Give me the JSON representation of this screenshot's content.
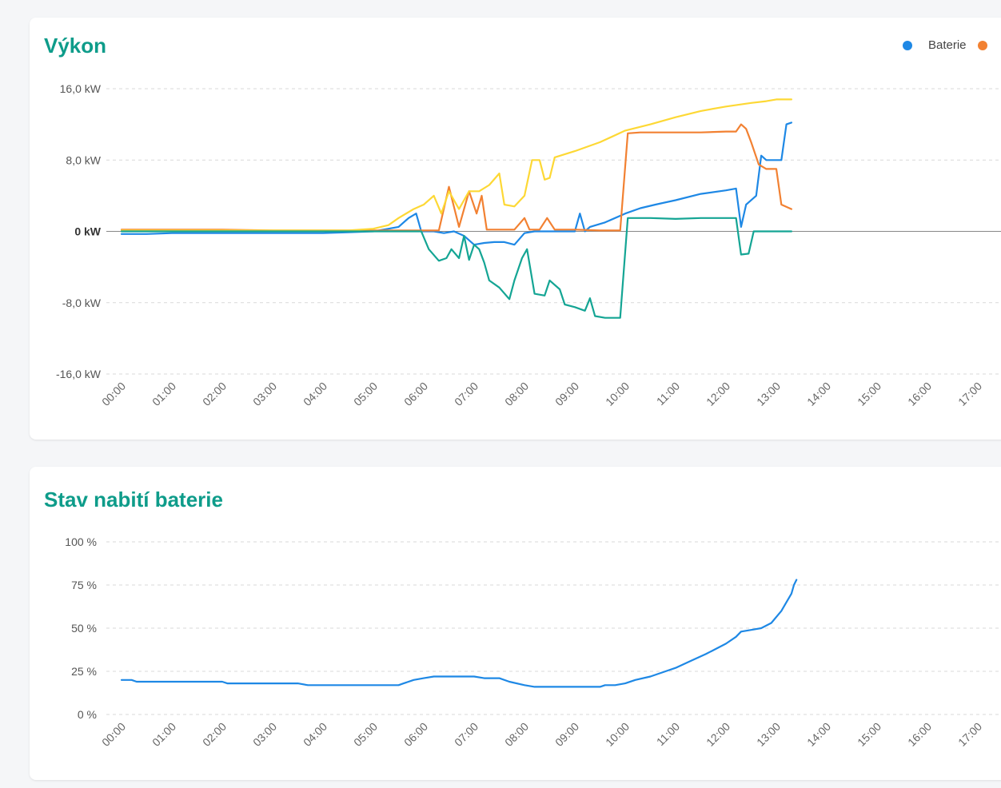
{
  "cards": {
    "power": {
      "title": "Výkon"
    },
    "soc": {
      "title": "Stav nabití baterie"
    }
  },
  "chart_data": [
    {
      "type": "line",
      "title": "Výkon",
      "unit": "kW",
      "xlabel": "",
      "ylabel": "",
      "x_ticks": [
        "00:00",
        "01:00",
        "02:00",
        "03:00",
        "04:00",
        "05:00",
        "06:00",
        "07:00",
        "08:00",
        "09:00",
        "10:00",
        "11:00",
        "12:00",
        "13:00",
        "14:00",
        "15:00",
        "16:00",
        "17:00"
      ],
      "y_ticks": [
        {
          "value": 16,
          "label": "16,0 kW"
        },
        {
          "value": 8,
          "label": "8,0 kW"
        },
        {
          "value": 0,
          "label": "0 kW"
        },
        {
          "value": -8,
          "label": "-8,0 kW"
        },
        {
          "value": -16,
          "label": "-16,0 kW"
        }
      ],
      "xlim": [
        0,
        17.5
      ],
      "ylim": [
        -16,
        16
      ],
      "grid": true,
      "legend_position": "top-right",
      "series": [
        {
          "name": "Baterie",
          "color": "#1e88e5",
          "points": [
            [
              0,
              -0.3
            ],
            [
              0.5,
              -0.3
            ],
            [
              1,
              -0.2
            ],
            [
              1.5,
              -0.2
            ],
            [
              2,
              -0.2
            ],
            [
              2.5,
              -0.2
            ],
            [
              3,
              -0.2
            ],
            [
              3.5,
              -0.2
            ],
            [
              4,
              -0.2
            ],
            [
              4.5,
              -0.1
            ],
            [
              5,
              0
            ],
            [
              5.3,
              0.3
            ],
            [
              5.5,
              0.5
            ],
            [
              5.7,
              1.5
            ],
            [
              5.85,
              2
            ],
            [
              5.95,
              0
            ],
            [
              6.2,
              0
            ],
            [
              6.4,
              -0.2
            ],
            [
              6.6,
              0
            ],
            [
              6.8,
              -0.5
            ],
            [
              7,
              -1.5
            ],
            [
              7.2,
              -1.3
            ],
            [
              7.4,
              -1.2
            ],
            [
              7.6,
              -1.2
            ],
            [
              7.8,
              -1.5
            ],
            [
              8,
              -0.2
            ],
            [
              8.2,
              0
            ],
            [
              8.4,
              0
            ],
            [
              8.7,
              0
            ],
            [
              9,
              0
            ],
            [
              9.1,
              2
            ],
            [
              9.2,
              0
            ],
            [
              9.3,
              0.5
            ],
            [
              9.6,
              1
            ],
            [
              10,
              2
            ],
            [
              10.3,
              2.6
            ],
            [
              10.6,
              3
            ],
            [
              11,
              3.5
            ],
            [
              11.5,
              4.2
            ],
            [
              12,
              4.6
            ],
            [
              12.2,
              4.8
            ],
            [
              12.3,
              0.5
            ],
            [
              12.4,
              3
            ],
            [
              12.6,
              4
            ],
            [
              12.7,
              8.5
            ],
            [
              12.8,
              8
            ],
            [
              13,
              8
            ],
            [
              13.1,
              8
            ],
            [
              13.2,
              12
            ],
            [
              13.3,
              12.2
            ]
          ]
        },
        {
          "name": "",
          "color": "#f28132",
          "points": [
            [
              0,
              0.2
            ],
            [
              1,
              0.2
            ],
            [
              2,
              0.2
            ],
            [
              3,
              0.1
            ],
            [
              4,
              0.1
            ],
            [
              5,
              0.1
            ],
            [
              5.5,
              0.1
            ],
            [
              6,
              0.1
            ],
            [
              6.3,
              0.1
            ],
            [
              6.5,
              5
            ],
            [
              6.7,
              0.5
            ],
            [
              6.9,
              4.5
            ],
            [
              7.05,
              2
            ],
            [
              7.15,
              4
            ],
            [
              7.25,
              0.2
            ],
            [
              7.5,
              0.2
            ],
            [
              7.8,
              0.2
            ],
            [
              8,
              1.5
            ],
            [
              8.1,
              0.2
            ],
            [
              8.3,
              0.2
            ],
            [
              8.45,
              1.5
            ],
            [
              8.6,
              0.2
            ],
            [
              9,
              0.2
            ],
            [
              9.5,
              0.1
            ],
            [
              9.9,
              0.1
            ],
            [
              10.05,
              11
            ],
            [
              10.3,
              11.1
            ],
            [
              11,
              11.1
            ],
            [
              11.5,
              11.1
            ],
            [
              12,
              11.2
            ],
            [
              12.2,
              11.2
            ],
            [
              12.3,
              12
            ],
            [
              12.4,
              11.5
            ],
            [
              12.5,
              10
            ],
            [
              12.65,
              7.5
            ],
            [
              12.8,
              7
            ],
            [
              13,
              7
            ],
            [
              13.1,
              3
            ],
            [
              13.3,
              2.5
            ]
          ]
        },
        {
          "name": "",
          "color": "#fdd835",
          "points": [
            [
              0,
              0.1
            ],
            [
              1,
              0.1
            ],
            [
              2,
              0.1
            ],
            [
              3,
              0.1
            ],
            [
              4,
              0.1
            ],
            [
              4.5,
              0.1
            ],
            [
              5,
              0.3
            ],
            [
              5.3,
              0.7
            ],
            [
              5.5,
              1.5
            ],
            [
              5.8,
              2.5
            ],
            [
              6,
              3
            ],
            [
              6.2,
              4
            ],
            [
              6.35,
              2
            ],
            [
              6.5,
              4.5
            ],
            [
              6.7,
              2.5
            ],
            [
              6.9,
              4.5
            ],
            [
              7.1,
              4.5
            ],
            [
              7.3,
              5.2
            ],
            [
              7.5,
              6.5
            ],
            [
              7.6,
              3
            ],
            [
              7.8,
              2.8
            ],
            [
              8,
              4
            ],
            [
              8.15,
              8
            ],
            [
              8.3,
              8
            ],
            [
              8.4,
              5.8
            ],
            [
              8.5,
              6
            ],
            [
              8.6,
              8.3
            ],
            [
              9,
              9
            ],
            [
              9.5,
              10
            ],
            [
              10,
              11.3
            ],
            [
              10.5,
              12
            ],
            [
              11,
              12.8
            ],
            [
              11.5,
              13.5
            ],
            [
              12,
              14
            ],
            [
              12.5,
              14.4
            ],
            [
              12.8,
              14.6
            ],
            [
              13,
              14.8
            ],
            [
              13.3,
              14.8
            ]
          ]
        },
        {
          "name": "",
          "color": "#14a594",
          "points": [
            [
              0,
              0
            ],
            [
              1,
              0
            ],
            [
              2,
              0
            ],
            [
              3,
              0
            ],
            [
              4,
              0
            ],
            [
              5,
              0
            ],
            [
              5.5,
              0
            ],
            [
              5.95,
              0
            ],
            [
              6.1,
              -2
            ],
            [
              6.3,
              -3.3
            ],
            [
              6.45,
              -3
            ],
            [
              6.55,
              -2
            ],
            [
              6.7,
              -3
            ],
            [
              6.8,
              -0.5
            ],
            [
              6.9,
              -3.2
            ],
            [
              7,
              -1.5
            ],
            [
              7.1,
              -2
            ],
            [
              7.2,
              -3.5
            ],
            [
              7.3,
              -5.5
            ],
            [
              7.5,
              -6.3
            ],
            [
              7.7,
              -7.6
            ],
            [
              7.8,
              -5.5
            ],
            [
              7.95,
              -3
            ],
            [
              8.05,
              -2
            ],
            [
              8.2,
              -7
            ],
            [
              8.4,
              -7.2
            ],
            [
              8.5,
              -5.5
            ],
            [
              8.7,
              -6.5
            ],
            [
              8.8,
              -8.2
            ],
            [
              9,
              -8.5
            ],
            [
              9.2,
              -8.9
            ],
            [
              9.3,
              -7.5
            ],
            [
              9.4,
              -9.5
            ],
            [
              9.6,
              -9.7
            ],
            [
              9.9,
              -9.7
            ],
            [
              10.05,
              1.5
            ],
            [
              10.5,
              1.5
            ],
            [
              11,
              1.4
            ],
            [
              11.5,
              1.5
            ],
            [
              12,
              1.5
            ],
            [
              12.2,
              1.5
            ],
            [
              12.3,
              -2.6
            ],
            [
              12.45,
              -2.5
            ],
            [
              12.55,
              0
            ],
            [
              12.7,
              0
            ],
            [
              13,
              0
            ],
            [
              13.3,
              0
            ]
          ]
        }
      ]
    },
    {
      "type": "line",
      "title": "Stav nabití baterie",
      "unit": "%",
      "xlabel": "",
      "ylabel": "",
      "x_ticks": [
        "00:00",
        "01:00",
        "02:00",
        "03:00",
        "04:00",
        "05:00",
        "06:00",
        "07:00",
        "08:00",
        "09:00",
        "10:00",
        "11:00",
        "12:00",
        "13:00",
        "14:00",
        "15:00",
        "16:00",
        "17:00"
      ],
      "y_ticks": [
        {
          "value": 100,
          "label": "100 %"
        },
        {
          "value": 75,
          "label": "75 %"
        },
        {
          "value": 50,
          "label": "50 %"
        },
        {
          "value": 25,
          "label": "25 %"
        },
        {
          "value": 0,
          "label": "0 %"
        }
      ],
      "xlim": [
        0,
        17.5
      ],
      "ylim": [
        0,
        100
      ],
      "grid": true,
      "series": [
        {
          "name": "Baterie",
          "color": "#1e88e5",
          "points": [
            [
              0,
              20
            ],
            [
              0.2,
              20
            ],
            [
              0.3,
              19
            ],
            [
              1,
              19
            ],
            [
              1.5,
              19
            ],
            [
              2,
              19
            ],
            [
              2.1,
              18
            ],
            [
              3,
              18
            ],
            [
              3.5,
              18
            ],
            [
              3.7,
              17
            ],
            [
              4,
              17
            ],
            [
              4.5,
              17
            ],
            [
              5,
              17
            ],
            [
              5.5,
              17
            ],
            [
              5.6,
              18
            ],
            [
              5.8,
              20
            ],
            [
              6,
              21
            ],
            [
              6.2,
              22
            ],
            [
              6.5,
              22
            ],
            [
              7,
              22
            ],
            [
              7.2,
              21
            ],
            [
              7.5,
              21
            ],
            [
              7.7,
              19
            ],
            [
              8,
              17
            ],
            [
              8.2,
              16
            ],
            [
              8.5,
              16
            ],
            [
              9,
              16
            ],
            [
              9.5,
              16
            ],
            [
              9.6,
              17
            ],
            [
              9.8,
              17
            ],
            [
              10,
              18
            ],
            [
              10.2,
              20
            ],
            [
              10.5,
              22
            ],
            [
              10.8,
              25
            ],
            [
              11,
              27
            ],
            [
              11.3,
              31
            ],
            [
              11.6,
              35
            ],
            [
              12,
              41
            ],
            [
              12.2,
              45
            ],
            [
              12.3,
              48
            ],
            [
              12.5,
              49
            ],
            [
              12.7,
              50
            ],
            [
              12.9,
              53
            ],
            [
              13.1,
              60
            ],
            [
              13.2,
              65
            ],
            [
              13.3,
              70
            ],
            [
              13.35,
              75
            ],
            [
              13.4,
              78
            ]
          ]
        }
      ]
    }
  ]
}
